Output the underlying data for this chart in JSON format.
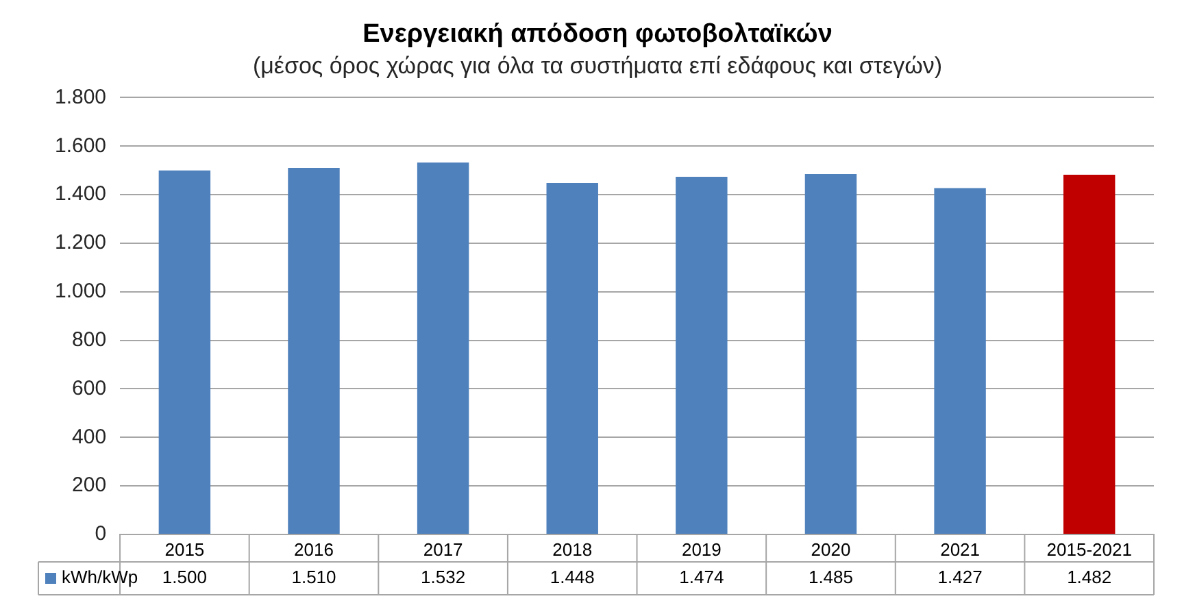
{
  "chart_data": {
    "type": "bar",
    "title": "Ενεργειακή απόδοση φωτοβολταϊκών",
    "subtitle": "(μέσος όρος χώρας για όλα τα συστήματα επί εδάφους και στεγών)",
    "categories": [
      "2015",
      "2016",
      "2017",
      "2018",
      "2019",
      "2020",
      "2021",
      "2015-2021"
    ],
    "series": [
      {
        "name": "kWh/kWp",
        "color": "#4f81bd",
        "colors": [
          "#4f81bd",
          "#4f81bd",
          "#4f81bd",
          "#4f81bd",
          "#4f81bd",
          "#4f81bd",
          "#4f81bd",
          "#c00000"
        ],
        "values": [
          1500,
          1510,
          1532,
          1448,
          1474,
          1485,
          1427,
          1482
        ],
        "value_labels": [
          "1.500",
          "1.510",
          "1.532",
          "1.448",
          "1.474",
          "1.485",
          "1.427",
          "1.482"
        ]
      }
    ],
    "ylim": [
      0,
      1800
    ],
    "yticks": [
      {
        "value": 0,
        "label": "0"
      },
      {
        "value": 200,
        "label": "200"
      },
      {
        "value": 400,
        "label": "400"
      },
      {
        "value": 600,
        "label": "600"
      },
      {
        "value": 800,
        "label": "800"
      },
      {
        "value": 1000,
        "label": "1.000"
      },
      {
        "value": 1200,
        "label": "1.200"
      },
      {
        "value": 1400,
        "label": "1.400"
      },
      {
        "value": 1600,
        "label": "1.600"
      },
      {
        "value": 1800,
        "label": "1.800"
      }
    ],
    "grid": "y",
    "legend": "bottom"
  }
}
